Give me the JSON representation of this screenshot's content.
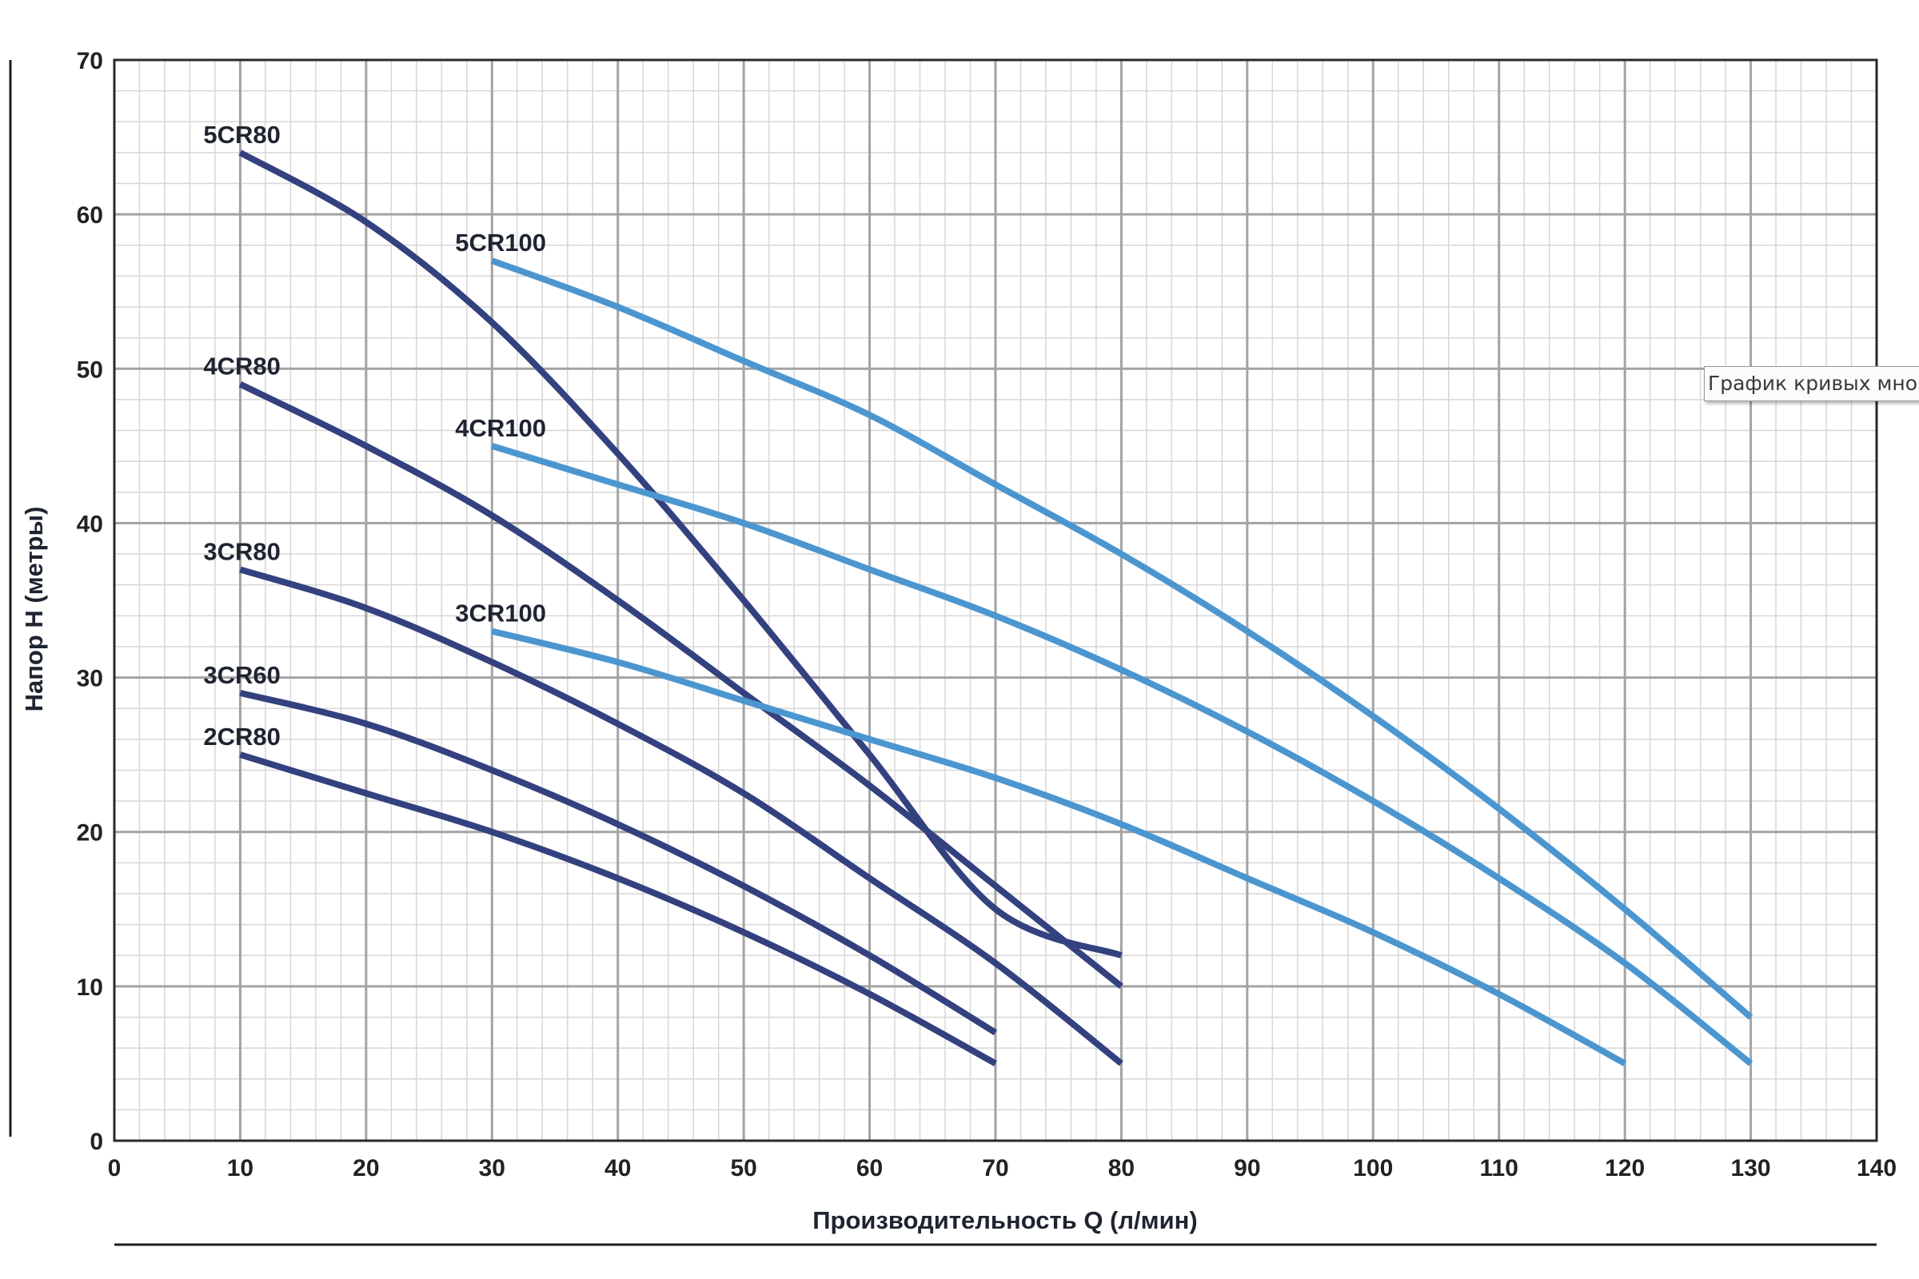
{
  "tooltip": {
    "text": "График кривых мно"
  },
  "chart_data": {
    "type": "line",
    "title": "",
    "xlabel": "Производительность Q (л/мин)",
    "ylabel": "Напор H (метры)",
    "xlim": [
      0,
      140
    ],
    "ylim": [
      0,
      70
    ],
    "x_ticks": [
      "0",
      "10",
      "20",
      "30",
      "40",
      "50",
      "60",
      "70",
      "80",
      "90",
      "100",
      "110",
      "120",
      "130",
      "140"
    ],
    "y_ticks": [
      "0",
      "10",
      "20",
      "30",
      "40",
      "50",
      "60",
      "70"
    ],
    "grid": true,
    "legend": "labels at series start",
    "colors": {
      "cr80": "#34417f",
      "cr100": "#4c96d0",
      "grid_major": "#a3a3a3",
      "grid_minor": "#d6d6d6"
    },
    "series": [
      {
        "name": "5CR80",
        "color": "#34417f",
        "x": [
          10,
          20,
          30,
          40,
          50,
          60,
          70,
          80
        ],
        "y": [
          64,
          59.5,
          53,
          44.5,
          35,
          25,
          15,
          12
        ]
      },
      {
        "name": "4CR80",
        "color": "#34417f",
        "x": [
          10,
          20,
          30,
          40,
          50,
          60,
          70,
          80
        ],
        "y": [
          49,
          45,
          40.5,
          35,
          29,
          23,
          16.5,
          10
        ]
      },
      {
        "name": "3CR80",
        "color": "#34417f",
        "x": [
          10,
          20,
          30,
          40,
          50,
          60,
          70,
          80
        ],
        "y": [
          37,
          34.5,
          31,
          27,
          22.5,
          17,
          11.5,
          5
        ]
      },
      {
        "name": "3CR60",
        "color": "#34417f",
        "x": [
          10,
          20,
          30,
          40,
          50,
          60,
          70
        ],
        "y": [
          29,
          27,
          24,
          20.5,
          16.5,
          12,
          7
        ]
      },
      {
        "name": "2CR80",
        "color": "#34417f",
        "x": [
          10,
          20,
          30,
          40,
          50,
          60,
          70
        ],
        "y": [
          25,
          22.5,
          20,
          17,
          13.5,
          9.5,
          5
        ]
      },
      {
        "name": "5CR100",
        "color": "#4c96d0",
        "x": [
          30,
          40,
          50,
          60,
          70,
          80,
          90,
          100,
          110,
          120,
          130
        ],
        "y": [
          57,
          54,
          50.5,
          47,
          42.5,
          38,
          33,
          27.5,
          21.5,
          15,
          8
        ]
      },
      {
        "name": "4CR100",
        "color": "#4c96d0",
        "x": [
          30,
          40,
          50,
          60,
          70,
          80,
          90,
          100,
          110,
          120,
          130
        ],
        "y": [
          45,
          42.5,
          40,
          37,
          34,
          30.5,
          26.5,
          22,
          17,
          11.5,
          5
        ]
      },
      {
        "name": "3CR100",
        "color": "#4c96d0",
        "x": [
          30,
          40,
          50,
          60,
          70,
          80,
          90,
          100,
          110,
          120
        ],
        "y": [
          33,
          31,
          28.5,
          26,
          23.5,
          20.5,
          17,
          13.5,
          9.5,
          5
        ]
      }
    ]
  }
}
